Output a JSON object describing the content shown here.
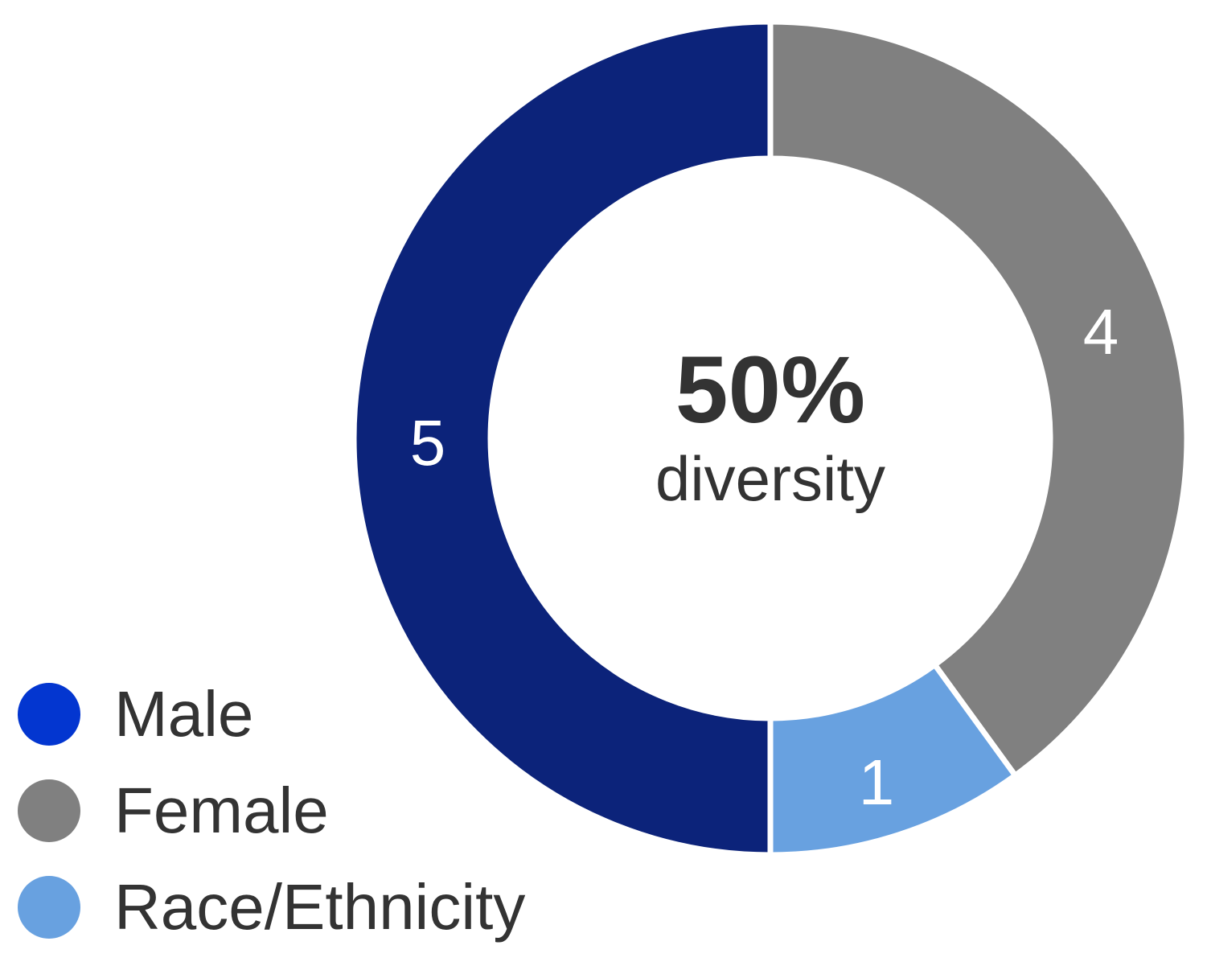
{
  "chart_data": {
    "type": "pie",
    "variant": "donut",
    "categories": [
      "Male",
      "Female",
      "Race/Ethnicity"
    ],
    "values": [
      5,
      4,
      1
    ],
    "colors": [
      "#0c237a",
      "#808080",
      "#68a1e0"
    ],
    "legend_colors": [
      "#0336d0",
      "#808080",
      "#68a1e0"
    ],
    "center_label": {
      "value": "50%",
      "caption": "diversity"
    },
    "legend_position": "bottom-left",
    "title": ""
  },
  "center": {
    "value": "50%",
    "caption": "diversity"
  },
  "legend": [
    {
      "label": "Male",
      "color": "#0336d0"
    },
    {
      "label": "Female",
      "color": "#808080"
    },
    {
      "label": "Race/Ethnicity",
      "color": "#68a1e0"
    }
  ],
  "labels": {
    "male": "5",
    "female": "4",
    "race": "1"
  }
}
